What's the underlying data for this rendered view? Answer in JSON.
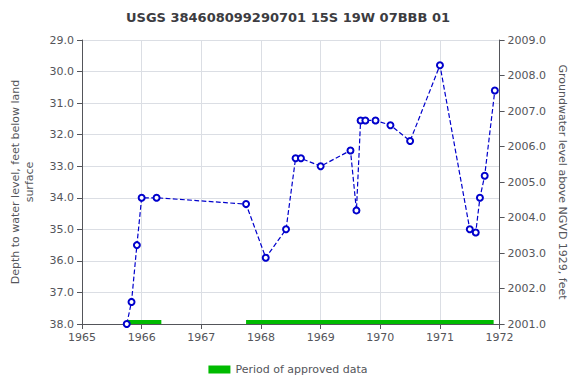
{
  "chart_data": {
    "type": "line",
    "title": "USGS 384608099290701 15S 19W 07BBB 01",
    "ylabel": "Depth to water level, feet below land\nsurface",
    "y2label": "Groundwater level above NGVD 1929, feet",
    "x": [
      1965.75,
      1965.83,
      1965.92,
      1966.0,
      1966.25,
      1967.75,
      1968.08,
      1968.42,
      1968.58,
      1968.67,
      1969.0,
      1969.5,
      1969.6,
      1969.67,
      1969.75,
      1969.92,
      1970.17,
      1970.5,
      1971.0,
      1971.5,
      1971.6,
      1971.67,
      1971.75,
      1971.92
    ],
    "values": [
      38.0,
      37.3,
      35.5,
      34.0,
      34.0,
      34.2,
      35.9,
      35.0,
      32.75,
      32.75,
      33.0,
      32.5,
      34.4,
      31.55,
      31.55,
      31.55,
      31.7,
      32.2,
      29.8,
      35.0,
      35.1,
      34.0,
      33.3,
      30.6
    ],
    "color": "#0000cc",
    "marker": "circle",
    "line_style": "dashed",
    "xlim": [
      1965,
      1972
    ],
    "xticks": [
      1965,
      1966,
      1967,
      1968,
      1969,
      1970,
      1971,
      1972
    ],
    "ylim": [
      38.0,
      29.0
    ],
    "yticks": [
      {
        "value": 29.0,
        "label": "29.0"
      },
      {
        "value": 30.0,
        "label": "30.0"
      },
      {
        "value": 31.0,
        "label": "31.0"
      },
      {
        "value": 32.0,
        "label": "32.0"
      },
      {
        "value": 33.0,
        "label": "33.0"
      },
      {
        "value": 34.0,
        "label": "34.0"
      },
      {
        "value": 35.0,
        "label": "35.0"
      },
      {
        "value": 36.0,
        "label": "36.0"
      },
      {
        "value": 37.0,
        "label": "37.0"
      },
      {
        "value": 38.0,
        "label": "38.0"
      }
    ],
    "y2lim": [
      2001.0,
      2009.0
    ],
    "y2ticks": [
      {
        "value": 2001.0,
        "label": "2001.0"
      },
      {
        "value": 2002.0,
        "label": "2002.0"
      },
      {
        "value": 2003.0,
        "label": "2003.0"
      },
      {
        "value": 2004.0,
        "label": "2004.0"
      },
      {
        "value": 2005.0,
        "label": "2005.0"
      },
      {
        "value": 2006.0,
        "label": "2006.0"
      },
      {
        "value": 2007.0,
        "label": "2007.0"
      },
      {
        "value": 2008.0,
        "label": "2008.0"
      },
      {
        "value": 2009.0,
        "label": "2009.0"
      }
    ],
    "grid": true,
    "legend": "bottom",
    "approved_periods": {
      "name": "Period of approved data",
      "color": "#00bb00",
      "ranges": [
        [
          1965.75,
          1966.33
        ],
        [
          1967.75,
          1971.9
        ]
      ]
    }
  }
}
